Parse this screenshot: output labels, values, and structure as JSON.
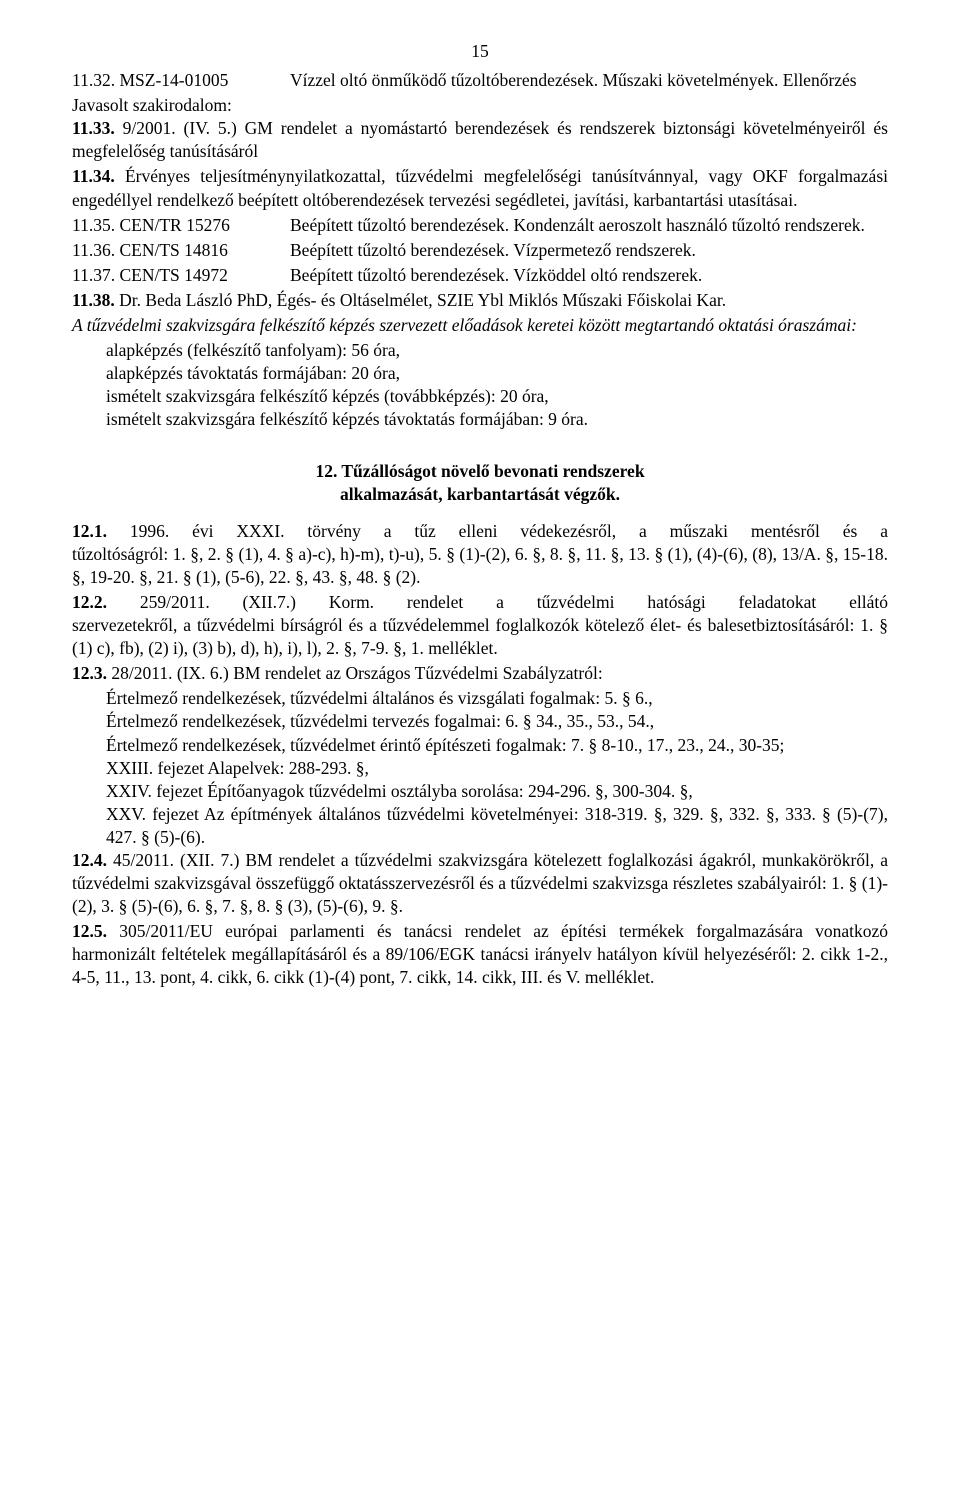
{
  "pageNumber": "15",
  "e1132": {
    "label": "11.32. MSZ-14-01005",
    "desc": "Vízzel oltó önműködő tűzoltóberendezések. Műszaki követelmények. Ellenőrzés"
  },
  "javasolt": "Javasolt szakirodalom:",
  "p1133": {
    "label": "11.33.",
    "text": " 9/2001. (IV. 5.) GM rendelet a nyomástartó berendezések és rendszerek biztonsági követelményeiről és megfelelőség tanúsításáról"
  },
  "p1134": {
    "label": "11.34.",
    "text": " Érvényes teljesítménynyilatkozattal, tűzvédelmi megfelelőségi tanúsítvánnyal, vagy OKF forgalmazási engedéllyel rendelkező beépített oltóberendezések tervezési segédletei, javítási, karbantartási utasításai."
  },
  "e1135": {
    "label": "11.35. CEN/TR 15276",
    "desc": "Beépített tűzoltó berendezések. Kondenzált aeroszolt használó tűzoltó rendszerek."
  },
  "e1136": {
    "label": "11.36. CEN/TS 14816",
    "desc": "Beépített tűzoltó berendezések. Vízpermetező rendszerek."
  },
  "e1137": {
    "label": "11.37. CEN/TS 14972",
    "desc": "Beépített tűzoltó berendezések. Vízköddel oltó rendszerek."
  },
  "p1138": {
    "label": "11.38.",
    "text": " Dr. Beda László PhD, Égés- és Oltáselmélet, SZIE Ybl Miklós Műszaki Főiskolai Kar."
  },
  "orak_intro": "A tűzvédelmi szakvizsgára felkészítő képzés szervezett előadások keretei között megtartandó oktatási óraszámai:",
  "orak": [
    "alapképzés (felkészítő tanfolyam): 56 óra,",
    "alapképzés távoktatás formájában: 20 óra,",
    "ismételt szakvizsgára felkészítő képzés (továbbképzés): 20 óra,",
    "ismételt szakvizsgára felkészítő képzés távoktatás formájában: 9 óra."
  ],
  "heading12_l1": "12. Tűzállóságot növelő bevonati rendszerek",
  "heading12_l2": "alkalmazását, karbantartását végzők.",
  "p121": {
    "label": "12.1.",
    "pre": " 1996. évi XXXI.",
    "mid": " törvény a tűz elleni védekezésről, a műszaki mentésről és a",
    "rest": "tűzoltóságról: 1. §, 2. § (1), 4. § a)-c), h)-m), t)-u), 5. § (1)-(2), 6. §, 8. §, 11. §, 13. § (1), (4)-(6), (8), 13/A. §, 15-18. §, 19-20. §, 21. § (1), (5-6), 22. §, 43. §, 48. § (2)."
  },
  "p122": {
    "label": "12.2.",
    "pre": " 259/2011. (XII.7.) Korm.",
    "mid": " rendelet a tűzvédelmi hatósági feladatokat ellátó",
    "rest": "szervezetekről, a tűzvédelmi bírságról és a tűzvédelemmel foglalkozók kötelező élet- és balesetbiztosításáról: 1. § (1) c), fb), (2) i), (3) b), d), h), i), l), 2. §, 7-9. §, 1. melléklet."
  },
  "p123": {
    "label": "12.3.",
    "text": " 28/2011. (IX. 6.) BM rendelet az Országos Tűzvédelmi Szabályzatról:"
  },
  "p123_sub": [
    "Értelmező rendelkezések, tűzvédelmi általános és vizsgálati fogalmak: 5. § 6.,",
    "Értelmező rendelkezések, tűzvédelmi tervezés fogalmai: 6. § 34., 35., 53., 54.,",
    "Értelmező rendelkezések, tűzvédelmet érintő építészeti fogalmak: 7. § 8-10., 17., 23., 24., 30-35;",
    "XXIII. fejezet Alapelvek: 288-293. §,",
    "XXIV. fejezet Építőanyagok tűzvédelmi osztályba sorolása: 294-296. §, 300-304. §,",
    "XXV. fejezet Az építmények általános tűzvédelmi követelményei: 318-319. §, 329. §, 332. §, 333. § (5)-(7), 427. § (5)-(6)."
  ],
  "p124": {
    "label": "12.4.",
    "text": " 45/2011. (XII. 7.) BM rendelet a tűzvédelmi szakvizsgára kötelezett foglalkozási ágakról, munkakörökről, a tűzvédelmi szakvizsgával összefüggő oktatásszervezésről és a tűzvédelmi szakvizsga részletes szabályairól: 1. § (1)-(2), 3. § (5)-(6), 6. §, 7. §, 8. § (3), (5)-(6), 9. §."
  },
  "p125": {
    "label": "12.5.",
    "text": " 305/2011/EU európai parlamenti és tanácsi rendelet az építési termékek forgalmazására vonatkozó harmonizált feltételek megállapításáról és a 89/106/EGK tanácsi irányelv hatályon kívül helyezéséről: 2. cikk 1-2., 4-5, 11., 13. pont, 4. cikk, 6. cikk (1)-(4) pont, 7. cikk, 14. cikk, III. és V. melléklet."
  }
}
